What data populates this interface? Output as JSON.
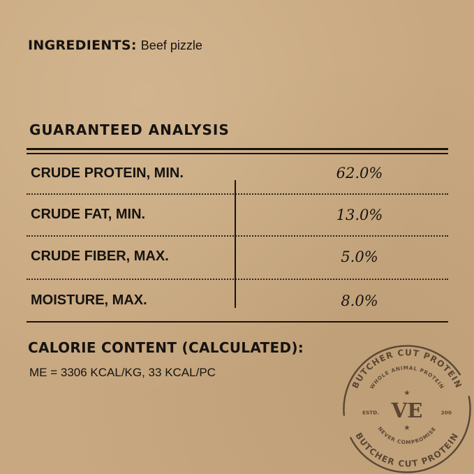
{
  "ingredients": {
    "label": "INGREDIENTS:",
    "value": "Beef pizzle"
  },
  "analysis": {
    "title": "GUARANTEED ANALYSIS",
    "rows": [
      {
        "label": "CRUDE PROTEIN, MIN.",
        "value": "62.0%"
      },
      {
        "label": "CRUDE FAT, MIN.",
        "value": "13.0%"
      },
      {
        "label": "CRUDE FIBER, MAX.",
        "value": "5.0%"
      },
      {
        "label": "MOISTURE, MAX.",
        "value": "8.0%"
      }
    ]
  },
  "calorie": {
    "title": "CALORIE CONTENT (CALCULATED):",
    "value": "ME = 3306 KCAL/KG, 33 KCAL/PC"
  },
  "stamp": {
    "outer": "BUTCHER CUT PROTEIN",
    "inner": "WHOLE ANIMAL PROTEIN",
    "monogram": "VE",
    "estd": "ESTD.",
    "year": "200",
    "bottom": "NEVER COMPROMISE",
    "outer_repeat": "BUTCHER CUT PROTEIN"
  },
  "colors": {
    "background": "#c8a880",
    "ink": "#161310",
    "stamp": "#5a4634"
  }
}
